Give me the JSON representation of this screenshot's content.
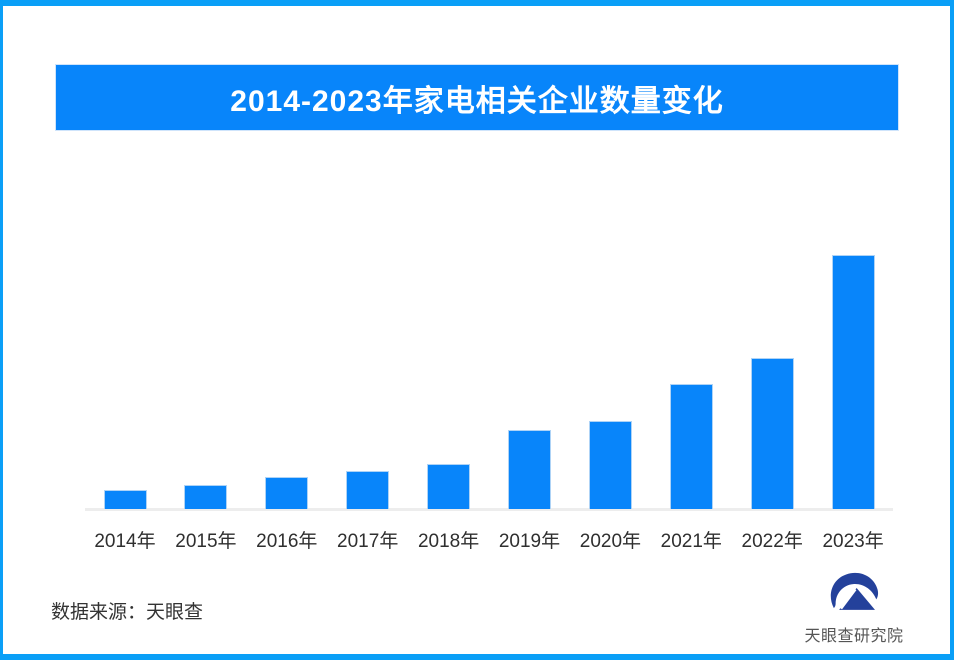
{
  "frame": {
    "border_color": "#0a9ff7",
    "background": "#ffffff"
  },
  "title_banner": {
    "text": "2014-2023年家电相关企业数量变化",
    "bg_color": "#0885fa",
    "text_color": "#ffffff"
  },
  "chart_data": {
    "type": "bar",
    "title": "2014-2023年家电相关企业数量变化",
    "categories": [
      "2014年",
      "2015年",
      "2016年",
      "2017年",
      "2018年",
      "2019年",
      "2020年",
      "2021年",
      "2022年",
      "2023年"
    ],
    "values": [
      19,
      24,
      32,
      38,
      45,
      79,
      88,
      125,
      151,
      254
    ],
    "values_note": "no numeric axis or data labels shown in the image; values are estimated relative bar heights in pixels",
    "xlabel": "",
    "ylabel": "",
    "ylim": [
      0,
      270
    ],
    "grid": false,
    "legend": false,
    "bar_color": "#0885fa",
    "bar_edge_color": "#aed3f6",
    "baseline_color": "#ededed",
    "tick_label_color": "#2f2f2f"
  },
  "footer": {
    "source_label": "数据来源：天眼查",
    "logo_wordmark": "天眼查研究院",
    "logo_color": "#24419b"
  },
  "icons": {
    "logo": "tianyancha-eye-logo-icon"
  }
}
